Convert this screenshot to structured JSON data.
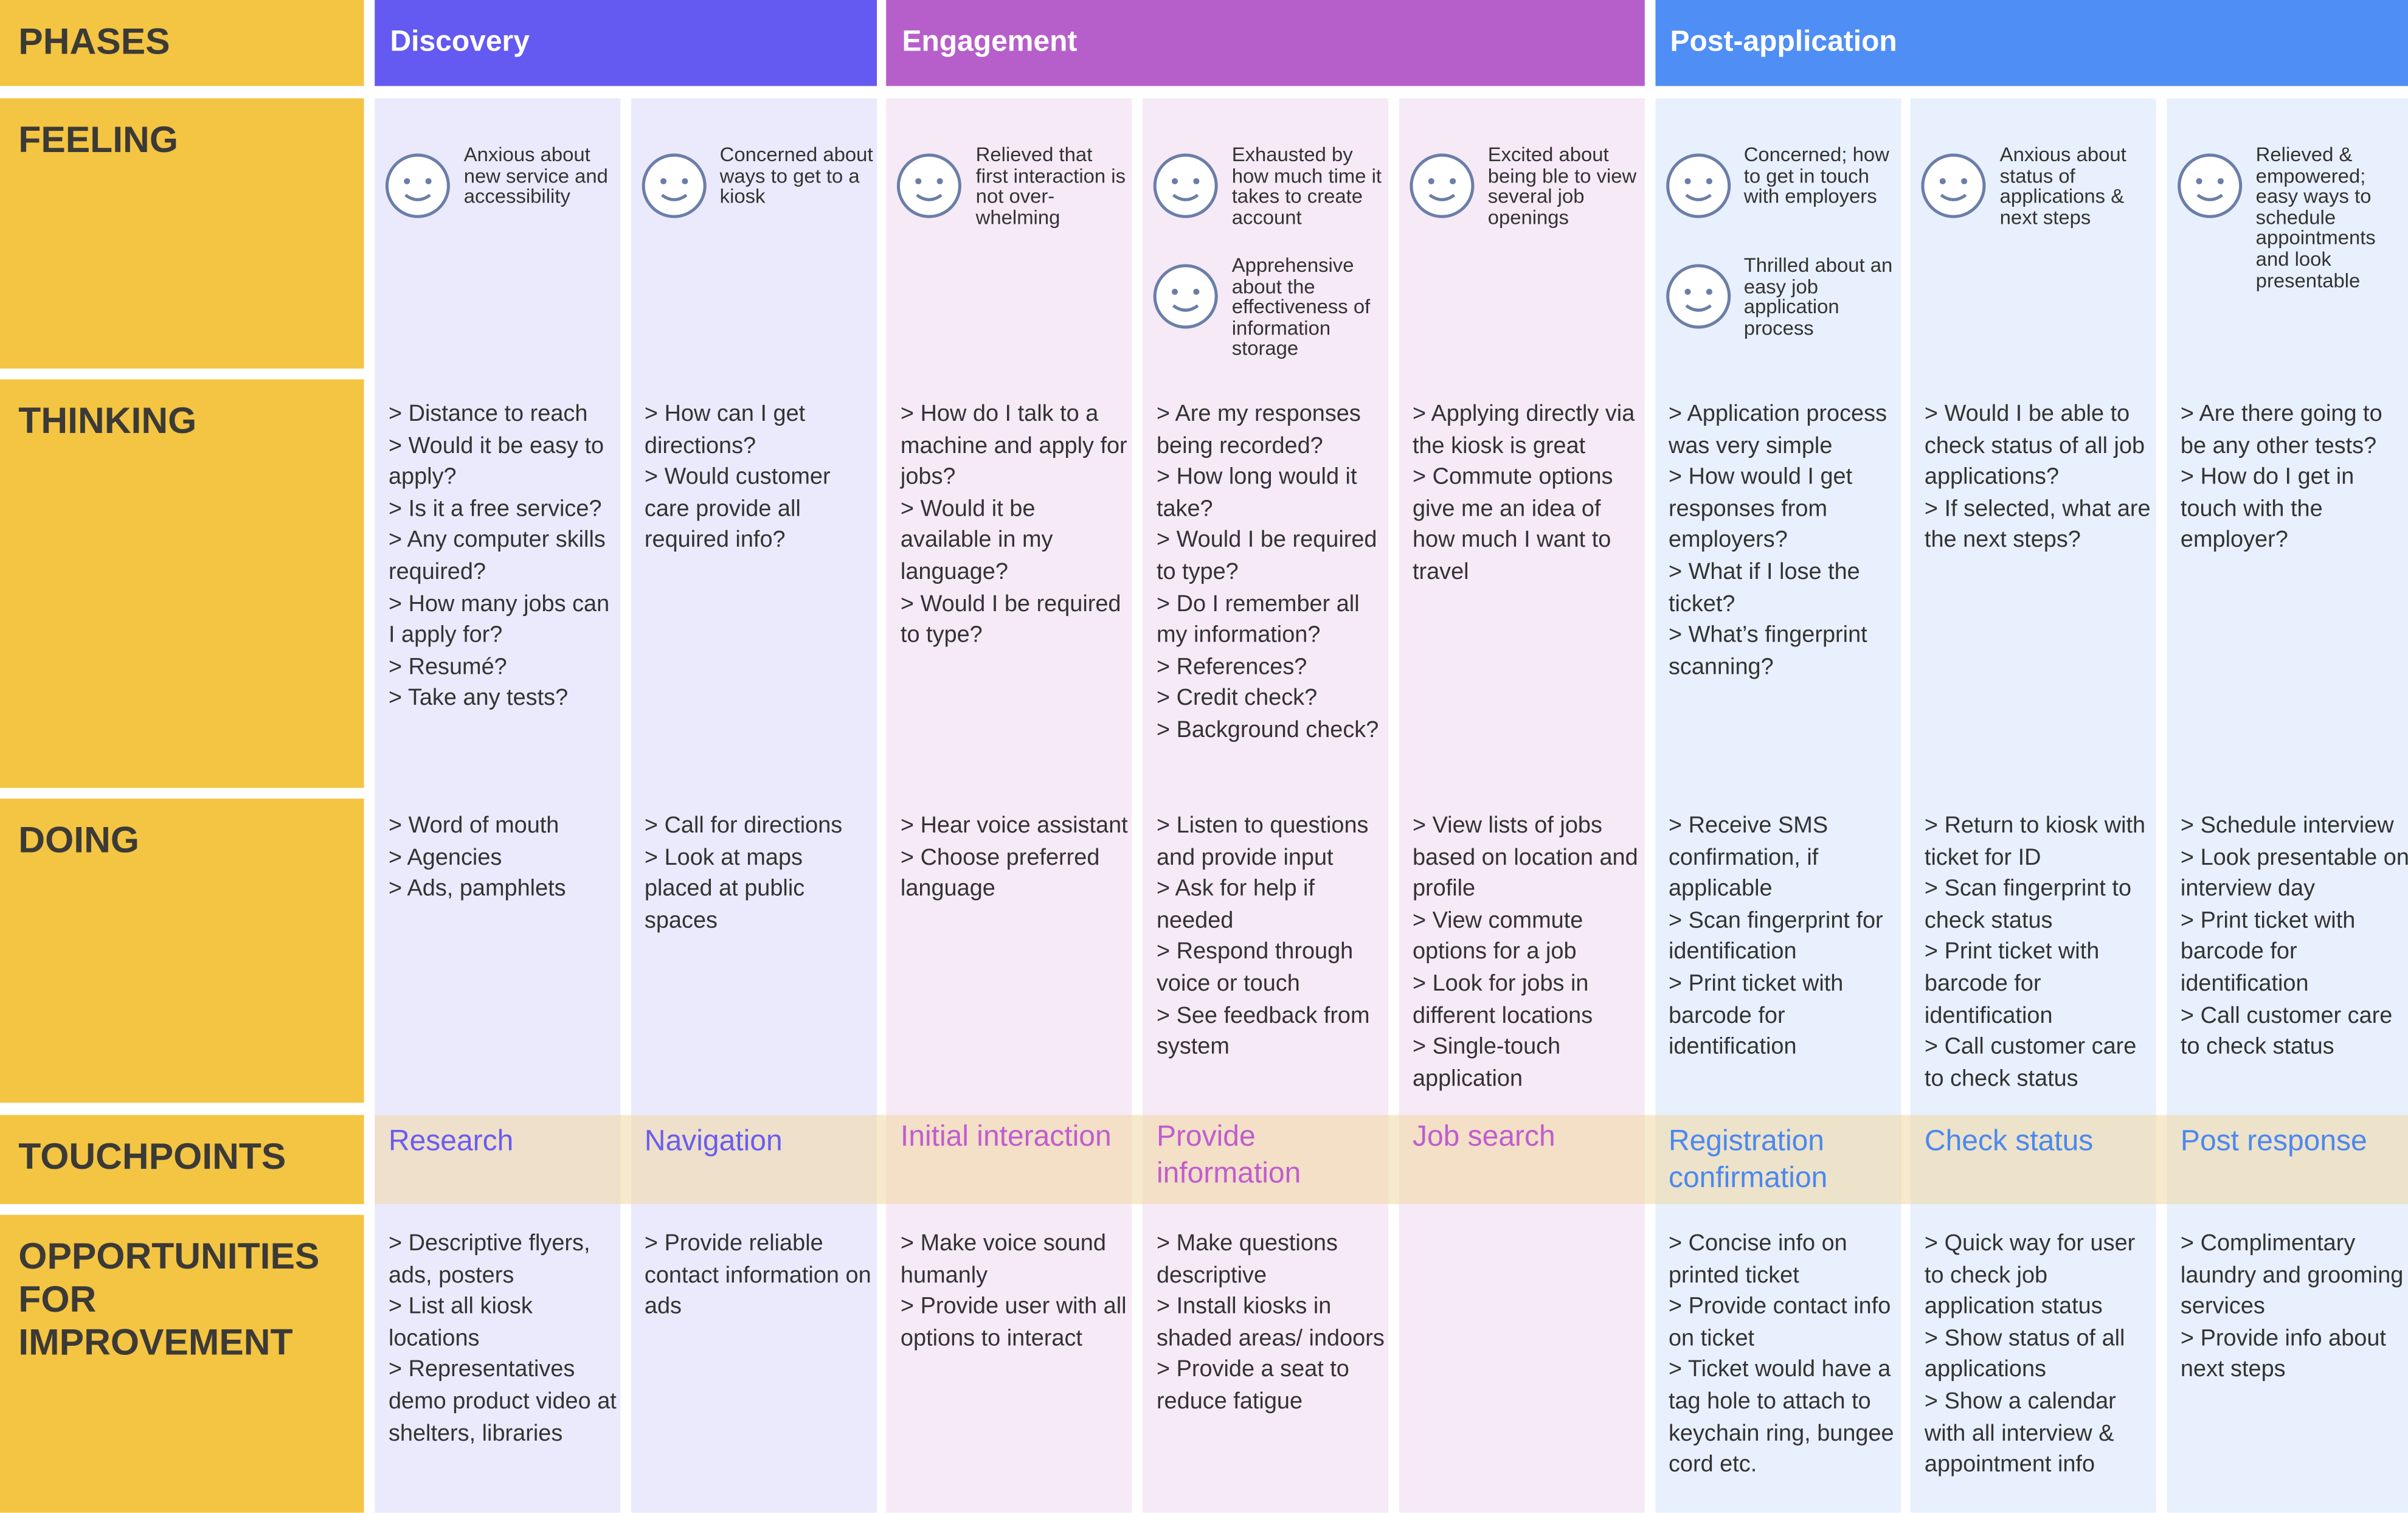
{
  "rows": [
    "PHASES",
    "FEELING",
    "THINKING",
    "DOING",
    "TOUCHPOINTS",
    "OPPORTUNITIES FOR IMPROVEMENT"
  ],
  "phases": [
    {
      "name": "Discovery",
      "columns": [
        {
          "feelings": [
            "Anxious about new service and accessibility"
          ],
          "thinking": [
            "> Distance to reach",
            "> Would it be easy to apply?",
            "> Is it a free service?",
            "> Any computer skills required?",
            "> How many jobs can I apply for?",
            "> Resumé?",
            "> Take any tests?"
          ],
          "doing": [
            "> Word of mouth",
            "> Agencies",
            "> Ads, pamphlets"
          ],
          "touchpoint": "Research",
          "opportunities": [
            "> Descriptive flyers, ads, posters",
            "> List all kiosk locations",
            "> Representatives demo product video at shelters, libraries"
          ]
        },
        {
          "feelings": [
            "Concerned about ways to get to a kiosk"
          ],
          "thinking": [
            "> How can I get directions?",
            "> Would customer care provide all required info?"
          ],
          "doing": [
            "> Call for directions",
            "> Look at maps placed at public spaces"
          ],
          "touchpoint": "Navigation",
          "opportunities": [
            "> Provide reliable contact information on ads"
          ]
        }
      ]
    },
    {
      "name": "Engagement",
      "columns": [
        {
          "feelings": [
            "Relieved that first interaction is not over-whelming"
          ],
          "thinking": [
            "> How do I talk to a machine and apply for jobs?",
            "> Would it be available in my language?",
            "> Would I be required to type?"
          ],
          "doing": [
            "> Hear voice assistant",
            "> Choose preferred language"
          ],
          "touchpoint": "Initial interaction",
          "opportunities": [
            "> Make voice sound humanly",
            "> Provide user with all options to interact"
          ]
        },
        {
          "feelings": [
            "Exhausted by how much time it takes to create account",
            "Apprehensive about the effectiveness of information storage"
          ],
          "thinking": [
            "> Are my responses being recorded?",
            "> How long would it take?",
            "> Would I be required to type?",
            "> Do I remember all my information?",
            "> References?",
            "> Credit check?",
            "> Background check?"
          ],
          "doing": [
            "> Listen to questions and provide input",
            "> Ask for help if needed",
            "> Respond through voice or touch",
            "> See feedback from system"
          ],
          "touchpoint": "Provide information",
          "opportunities": [
            "> Make questions descriptive",
            "> Install kiosks in shaded areas/ indoors",
            "> Provide a seat to reduce fatigue"
          ]
        },
        {
          "feelings": [
            "Excited about being ble to view several job openings"
          ],
          "thinking": [
            "> Applying directly via the kiosk is great",
            "> Commute options give me an idea of how much I want to travel"
          ],
          "doing": [
            "> View lists of jobs based on location and profile",
            "> View commute options for a job",
            "> Look for jobs in different locations",
            "> Single-touch application"
          ],
          "touchpoint": "Job search",
          "opportunities": []
        }
      ]
    },
    {
      "name": "Post-application",
      "columns": [
        {
          "feelings": [
            "Concerned; how to get in touch with employers",
            "Thrilled about an easy job application process"
          ],
          "thinking": [
            "> Application process was very simple",
            "> How would I get responses from employers?",
            "> What if I lose the ticket?",
            "> What’s fingerprint scanning?"
          ],
          "doing": [
            "> Receive SMS confirmation, if applicable",
            "> Scan fingerprint for identification",
            "> Print ticket with barcode for identification"
          ],
          "touchpoint": "Registration confirmation",
          "opportunities": [
            "> Concise info on printed ticket",
            "> Provide contact info on ticket",
            "> Ticket would have a tag hole to attach to keychain ring, bungee cord etc."
          ]
        },
        {
          "feelings": [
            "Anxious about status of applications & next steps"
          ],
          "thinking": [
            "> Would I be able to check status of all job applications?",
            "> If selected, what are the next steps?"
          ],
          "doing": [
            "> Return to kiosk with ticket for ID",
            "> Scan fingerprint to check status",
            "> Print ticket with barcode for identification",
            "> Call customer care to check status"
          ],
          "touchpoint": "Check status",
          "opportunities": [
            "> Quick way for user to check job application status",
            "> Show status of all applications",
            "> Show a calendar with all interview & appointment info"
          ]
        },
        {
          "feelings": [
            "Relieved & empowered; easy ways to schedule appointments and look presentable"
          ],
          "thinking": [
            "> Are there going to be any other tests?",
            "> How do I get in touch with the employer?"
          ],
          "doing": [
            "> Schedule interview",
            "> Look presentable on interview day",
            "> Print ticket with barcode for identification",
            "> Call customer care to check status"
          ],
          "touchpoint": "Post response",
          "opportunities": [
            "> Complimentary laundry and grooming services",
            "> Provide info about next steps"
          ]
        }
      ]
    }
  ]
}
